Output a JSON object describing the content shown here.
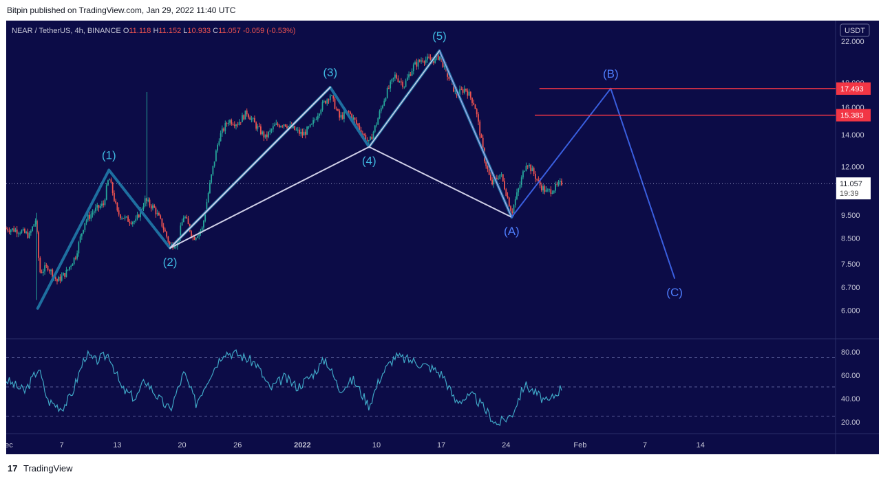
{
  "header": {
    "publisher_line": "Bitpin published on TradingView.com, Jan 29, 2022 11:40 UTC"
  },
  "footer": {
    "logo": "17",
    "brand": "TradingView"
  },
  "colors": {
    "background": "#0c0c47",
    "up": "#26a69a",
    "down": "#ef5350",
    "rsi": "#3fa7c6",
    "wave_fill": "#1e6fa0",
    "wave_edge": "#d0d0e8",
    "projection": "#3a5fe0",
    "resistance": "#f23645",
    "label_impulse": "#3fb8e0",
    "label_correction": "#4f7fff"
  },
  "chart_data": {
    "type": "candlestick",
    "symbol_line": {
      "name": "NEAR / TetherUS, 4h, BINANCE",
      "o_label": "O",
      "open": "11.118",
      "h_label": "H",
      "high": "11.152",
      "l_label": "L",
      "low": "10.933",
      "c_label": "C",
      "close": "11.057",
      "change": "-0.059 (-0.53%)"
    },
    "currency": "USDT",
    "y_scale": "log",
    "ylim": [
      5.4,
      23.5
    ],
    "y_ticks": [
      "22.000",
      "18.000",
      "16.000",
      "14.000",
      "12.000",
      "9.500",
      "8.500",
      "7.500",
      "6.700",
      "6.000"
    ],
    "x_ticks": [
      "Dec",
      "7",
      "13",
      "20",
      "26",
      "2022",
      "10",
      "17",
      "24",
      "Feb",
      "7",
      "14"
    ],
    "x_tick_days": [
      0,
      6,
      12,
      19,
      25,
      32,
      40,
      47,
      54,
      62,
      69,
      75
    ],
    "day_zero": "2021-12-01",
    "last_price": "11.057",
    "countdown": "19:39",
    "resistance_levels": [
      {
        "value": 17.493,
        "label": "17.493",
        "from_day": 57.6
      },
      {
        "value": 15.383,
        "label": "15.383",
        "from_day": 57.1
      }
    ],
    "elliott_waves": [
      {
        "label": "(1)",
        "day": 11.1,
        "price": 11.8,
        "group": "impulse"
      },
      {
        "label": "(2)",
        "day": 17.7,
        "price": 8.1,
        "group": "impulse"
      },
      {
        "label": "(3)",
        "day": 35.0,
        "price": 17.6,
        "group": "impulse"
      },
      {
        "label": "(4)",
        "day": 39.2,
        "price": 13.2,
        "group": "impulse"
      },
      {
        "label": "(5)",
        "day": 46.8,
        "price": 21.0,
        "group": "impulse"
      },
      {
        "label": "(A)",
        "day": 54.6,
        "price": 9.4,
        "group": "correction"
      },
      {
        "label": "(B)",
        "day": 65.3,
        "price": 17.5,
        "group": "correction"
      },
      {
        "label": "(C)",
        "day": 72.2,
        "price": 7.0,
        "group": "correction"
      }
    ],
    "wave_start": {
      "day": 3.4,
      "price": 6.05
    },
    "price_path": [
      [
        0,
        8.9
      ],
      [
        1.5,
        8.8
      ],
      [
        2.5,
        8.6
      ],
      [
        3.2,
        9.3
      ],
      [
        3.6,
        7.2
      ],
      [
        4.5,
        7.4
      ],
      [
        5.5,
        6.9
      ],
      [
        6.5,
        7.2
      ],
      [
        7.5,
        7.8
      ],
      [
        8.5,
        9.2
      ],
      [
        9.5,
        9.7
      ],
      [
        10.5,
        10.0
      ],
      [
        11.1,
        11.4
      ],
      [
        12.0,
        9.6
      ],
      [
        13.0,
        9.3
      ],
      [
        14.0,
        9.2
      ],
      [
        15.0,
        10.2
      ],
      [
        16.0,
        9.8
      ],
      [
        16.8,
        9.1
      ],
      [
        17.7,
        8.2
      ],
      [
        18.5,
        8.3
      ],
      [
        19.2,
        9.5
      ],
      [
        20.2,
        8.5
      ],
      [
        21.2,
        8.9
      ],
      [
        22.0,
        11.0
      ],
      [
        23.0,
        13.8
      ],
      [
        24.0,
        15.0
      ],
      [
        25.0,
        14.8
      ],
      [
        26.0,
        15.6
      ],
      [
        27.0,
        14.6
      ],
      [
        28.0,
        13.8
      ],
      [
        29.0,
        14.6
      ],
      [
        30.0,
        14.8
      ],
      [
        31.0,
        14.4
      ],
      [
        32.0,
        14.0
      ],
      [
        33.0,
        14.6
      ],
      [
        34.0,
        16.0
      ],
      [
        35.0,
        17.0
      ],
      [
        36.0,
        15.2
      ],
      [
        37.0,
        15.6
      ],
      [
        38.0,
        14.6
      ],
      [
        39.2,
        13.4
      ],
      [
        40.0,
        14.8
      ],
      [
        41.0,
        17.0
      ],
      [
        42.0,
        18.6
      ],
      [
        43.0,
        17.8
      ],
      [
        44.0,
        19.5
      ],
      [
        45.0,
        20.2
      ],
      [
        46.0,
        20.0
      ],
      [
        46.8,
        20.5
      ],
      [
        47.6,
        18.8
      ],
      [
        48.6,
        17.0
      ],
      [
        49.6,
        17.5
      ],
      [
        50.6,
        16.2
      ],
      [
        51.6,
        12.6
      ],
      [
        52.4,
        11.0
      ],
      [
        53.4,
        11.6
      ],
      [
        54.6,
        9.6
      ],
      [
        55.5,
        11.0
      ],
      [
        56.2,
        12.3
      ],
      [
        57.0,
        11.6
      ],
      [
        57.6,
        11.0
      ],
      [
        58.4,
        10.6
      ],
      [
        59.2,
        10.8
      ],
      [
        60.0,
        11.1
      ]
    ],
    "spike_wicks": [
      {
        "day": 15.2,
        "high": 17.2,
        "low": 9.9
      },
      {
        "day": 3.3,
        "high": 9.6,
        "low": 6.3
      }
    ],
    "rsi": {
      "ylim": [
        10,
        90
      ],
      "y_ticks": [
        "80.00",
        "60.00",
        "40.00",
        "20.00"
      ],
      "bands": [
        75,
        50,
        25
      ],
      "anchors": [
        [
          0,
          56
        ],
        [
          2,
          46
        ],
        [
          3.5,
          66
        ],
        [
          4.5,
          38
        ],
        [
          6,
          32
        ],
        [
          7,
          42
        ],
        [
          8.6,
          78
        ],
        [
          9.6,
          72
        ],
        [
          11.1,
          78
        ],
        [
          12.5,
          48
        ],
        [
          14,
          40
        ],
        [
          15,
          56
        ],
        [
          16.5,
          40
        ],
        [
          17.7,
          30
        ],
        [
          19.2,
          62
        ],
        [
          20.5,
          36
        ],
        [
          22,
          60
        ],
        [
          23.5,
          80
        ],
        [
          25,
          78
        ],
        [
          27,
          70
        ],
        [
          28.5,
          48
        ],
        [
          30,
          58
        ],
        [
          31.5,
          50
        ],
        [
          33,
          60
        ],
        [
          34.5,
          74
        ],
        [
          36,
          48
        ],
        [
          37.5,
          56
        ],
        [
          39.2,
          34
        ],
        [
          40.5,
          60
        ],
        [
          42,
          76
        ],
        [
          44,
          72
        ],
        [
          46,
          66
        ],
        [
          47.2,
          60
        ],
        [
          48.5,
          38
        ],
        [
          50.5,
          42
        ],
        [
          52,
          28
        ],
        [
          53,
          18
        ],
        [
          54.6,
          26
        ],
        [
          56,
          52
        ],
        [
          57,
          46
        ],
        [
          58.5,
          36
        ],
        [
          60,
          50
        ]
      ]
    }
  }
}
